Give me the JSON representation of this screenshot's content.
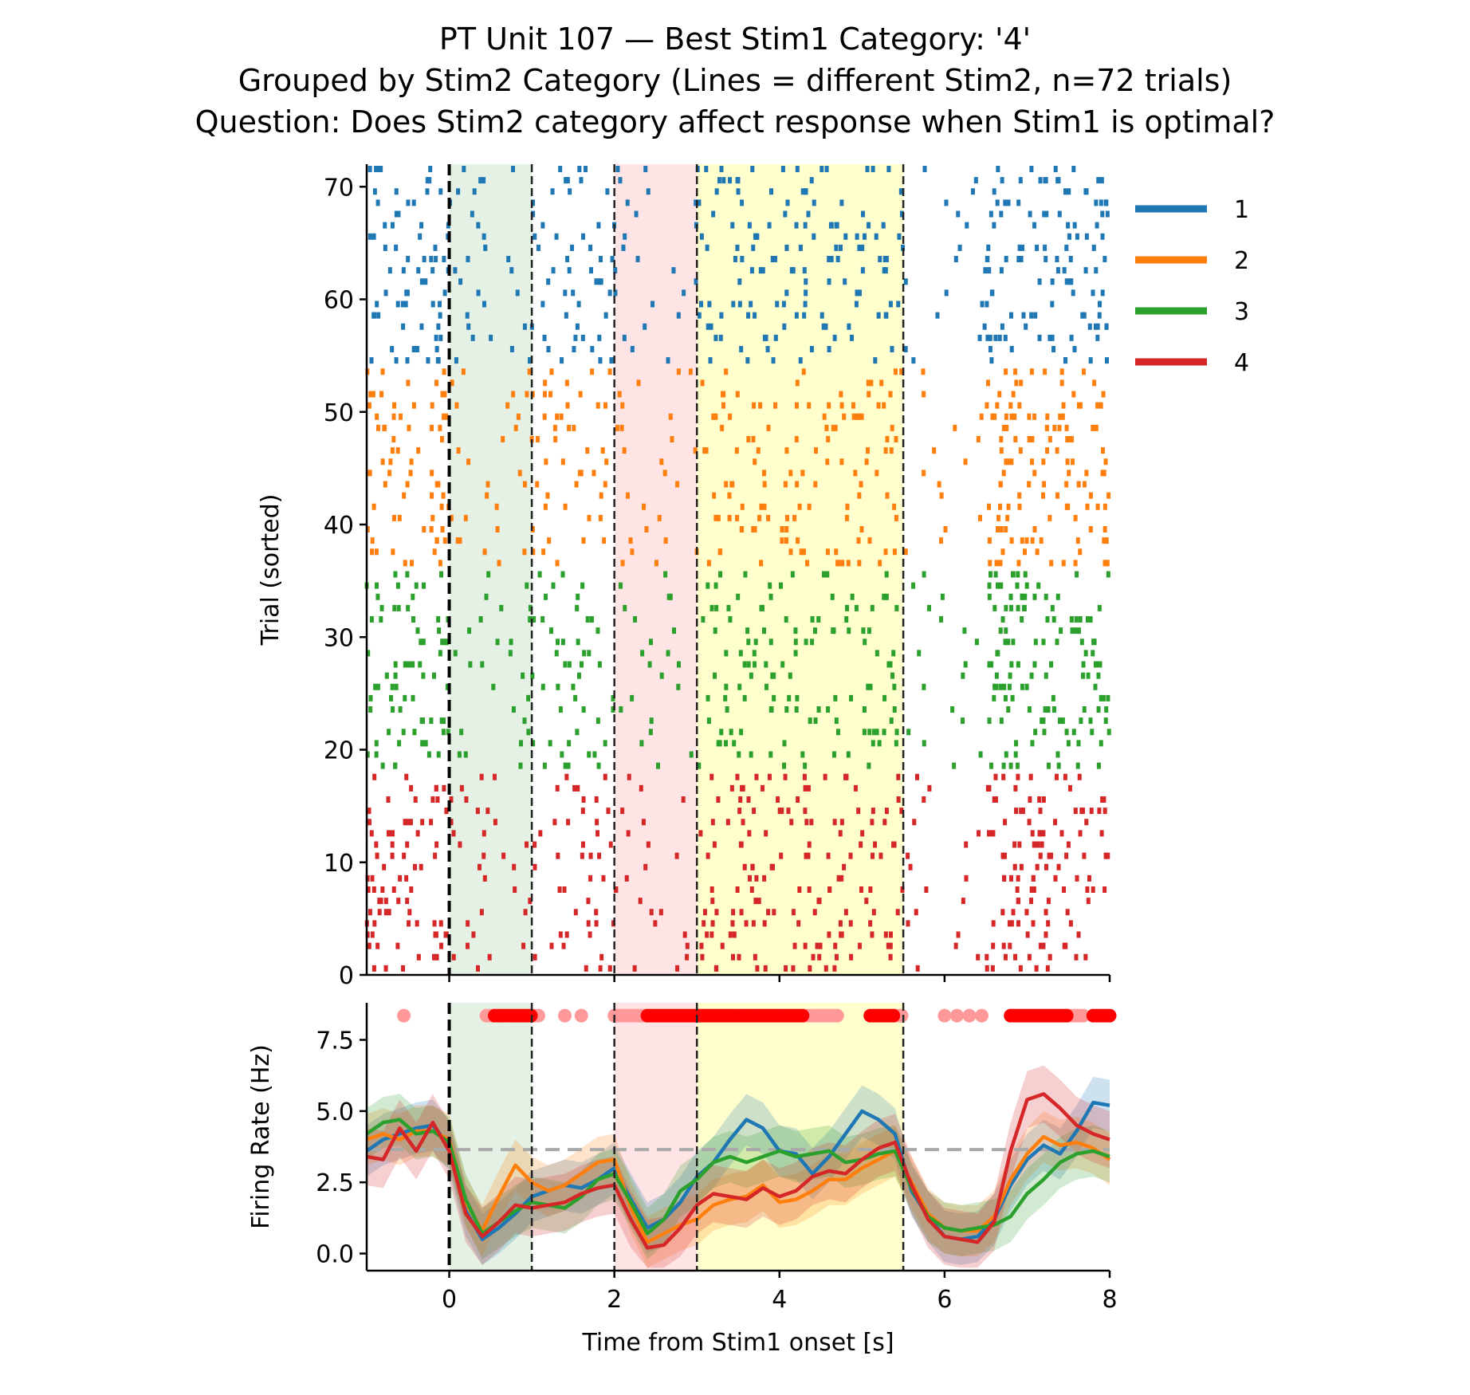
{
  "chart_data": [
    {
      "type": "scatter",
      "panel": "raster",
      "title": [
        "PT Unit 107 — Best Stim1 Category: '4'",
        "Grouped by Stim2 Category (Lines = different Stim2, n=72 trials)",
        "Question: Does Stim2 category affect response when Stim1 is optimal?"
      ],
      "ylabel": "Trial (sorted)",
      "xlim": [
        -1,
        8
      ],
      "ylim": [
        0,
        72
      ],
      "yticks": [
        0,
        10,
        20,
        30,
        40,
        50,
        60,
        70
      ],
      "trial_groups": [
        {
          "name": "1",
          "color": "#1f77b4",
          "trials": [
            54,
            72
          ]
        },
        {
          "name": "2",
          "color": "#ff7f0e",
          "trials": [
            36,
            54
          ]
        },
        {
          "name": "3",
          "color": "#2ca02c",
          "trials": [
            18,
            36
          ]
        },
        {
          "name": "4",
          "color": "#d62728",
          "trials": [
            0,
            18
          ]
        }
      ],
      "tick_density": [
        {
          "window": [
            -1.0,
            0.0
          ],
          "events_per_trial": 4
        },
        {
          "window": [
            0.0,
            1.0
          ],
          "events_per_trial": 1.6
        },
        {
          "window": [
            1.0,
            2.0
          ],
          "events_per_trial": 2.6
        },
        {
          "window": [
            2.0,
            3.0
          ],
          "events_per_trial": 1.2
        },
        {
          "window": [
            3.0,
            5.5
          ],
          "events_per_trial": 7.5
        },
        {
          "window": [
            5.5,
            6.5
          ],
          "events_per_trial": 0.8
        },
        {
          "window": [
            6.5,
            8.0
          ],
          "events_per_trial": 6.5
        }
      ]
    },
    {
      "type": "line",
      "panel": "psth",
      "xlabel": "Time from Stim1 onset [s]",
      "ylabel": "Firing Rate (Hz)",
      "xlim": [
        -1,
        8
      ],
      "ylim": [
        -0.6,
        8.8
      ],
      "xticks": [
        0,
        2,
        4,
        6,
        8
      ],
      "yticks": [
        0.0,
        2.5,
        5.0,
        7.5
      ],
      "ytick_labels": [
        "0.0",
        "2.5",
        "5.0",
        "7.5"
      ],
      "baseline": 3.65,
      "x": [
        -1.0,
        -0.8,
        -0.6,
        -0.4,
        -0.2,
        0.0,
        0.2,
        0.4,
        0.6,
        0.8,
        1.0,
        1.2,
        1.4,
        1.6,
        1.8,
        2.0,
        2.2,
        2.4,
        2.6,
        2.8,
        3.0,
        3.2,
        3.4,
        3.6,
        3.8,
        4.0,
        4.2,
        4.4,
        4.6,
        4.8,
        5.0,
        5.2,
        5.4,
        5.6,
        5.8,
        6.0,
        6.2,
        6.4,
        6.6,
        6.8,
        7.0,
        7.2,
        7.4,
        7.6,
        7.8,
        8.0
      ],
      "series": [
        {
          "name": "1",
          "color": "#1f77b4",
          "ci": 0.9,
          "values": [
            3.6,
            4.0,
            4.2,
            4.4,
            4.5,
            3.8,
            1.5,
            0.5,
            0.9,
            1.4,
            2.0,
            2.2,
            2.4,
            2.3,
            2.6,
            3.0,
            1.9,
            0.9,
            1.2,
            1.8,
            2.7,
            3.2,
            4.0,
            4.7,
            4.4,
            3.6,
            3.5,
            2.8,
            3.4,
            4.2,
            5.0,
            4.7,
            4.2,
            2.2,
            1.3,
            0.6,
            0.5,
            0.6,
            1.2,
            2.4,
            3.3,
            3.8,
            3.5,
            4.3,
            5.3,
            5.2
          ]
        },
        {
          "name": "2",
          "color": "#ff7f0e",
          "ci": 0.9,
          "values": [
            4.0,
            4.2,
            4.0,
            4.3,
            4.3,
            4.0,
            1.8,
            0.8,
            2.0,
            3.1,
            2.5,
            2.2,
            2.4,
            2.8,
            3.2,
            3.3,
            1.6,
            0.4,
            0.7,
            1.0,
            1.2,
            1.7,
            1.9,
            2.0,
            2.4,
            1.8,
            1.9,
            2.2,
            2.6,
            2.6,
            3.0,
            3.3,
            3.6,
            2.5,
            1.4,
            0.9,
            0.8,
            0.8,
            1.3,
            2.6,
            3.5,
            4.1,
            3.8,
            3.9,
            3.7,
            3.3
          ]
        },
        {
          "name": "3",
          "color": "#2ca02c",
          "ci": 0.9,
          "values": [
            4.2,
            4.6,
            4.7,
            4.2,
            4.3,
            3.9,
            1.9,
            0.7,
            1.1,
            1.5,
            1.8,
            1.7,
            1.6,
            2.0,
            2.6,
            2.8,
            1.8,
            0.7,
            1.2,
            2.2,
            2.6,
            3.2,
            3.4,
            3.2,
            3.4,
            3.6,
            3.4,
            3.5,
            3.6,
            3.2,
            3.3,
            3.5,
            3.6,
            2.3,
            1.3,
            0.9,
            0.8,
            0.9,
            1.0,
            1.3,
            2.1,
            2.6,
            3.2,
            3.5,
            3.6,
            3.4
          ]
        },
        {
          "name": "4",
          "color": "#d62728",
          "ci": 1.0,
          "values": [
            3.4,
            3.3,
            4.4,
            3.6,
            4.6,
            3.6,
            1.4,
            0.6,
            1.1,
            1.7,
            1.6,
            1.7,
            1.8,
            2.1,
            2.3,
            2.4,
            1.2,
            0.2,
            0.3,
            0.9,
            1.7,
            2.1,
            2.0,
            1.9,
            2.3,
            2.0,
            2.2,
            2.7,
            2.9,
            2.8,
            3.3,
            3.7,
            3.9,
            2.4,
            1.2,
            0.6,
            0.5,
            0.4,
            1.1,
            3.6,
            5.4,
            5.6,
            5.1,
            4.5,
            4.2,
            4.0
          ]
        }
      ],
      "significance_markers": {
        "y": 8.35,
        "bright_color": "#ff0000",
        "faint_color": "#ff9999",
        "bright_ranges": [
          [
            0.55,
            1.0
          ],
          [
            2.4,
            3.0
          ],
          [
            3.0,
            4.3
          ],
          [
            5.1,
            5.4
          ],
          [
            6.8,
            7.5
          ],
          [
            7.8,
            8.0
          ]
        ],
        "faint_ranges": [
          [
            0.45,
            0.55
          ],
          [
            1.0,
            1.1
          ],
          [
            2.0,
            2.4
          ],
          [
            4.3,
            4.7
          ],
          [
            5.4,
            5.5
          ],
          [
            6.8,
            7.7
          ]
        ],
        "faint_points": [
          -0.55,
          1.4,
          1.6,
          6.0,
          6.15,
          6.3,
          6.45
        ]
      }
    }
  ],
  "epochs": [
    {
      "start": 0.0,
      "end": 1.0,
      "color": "#c9e3c9"
    },
    {
      "start": 2.0,
      "end": 3.0,
      "color": "#ffc9cc"
    },
    {
      "start": 3.0,
      "end": 5.5,
      "color": "#ffff9e"
    }
  ],
  "epoch_edges": [
    1.0,
    2.0,
    3.0,
    5.5
  ],
  "onset": 0.0,
  "legend": {
    "placement": "upper right, outside",
    "entries": [
      {
        "label": "1",
        "color": "#1f77b4"
      },
      {
        "label": "2",
        "color": "#ff7f0e"
      },
      {
        "label": "3",
        "color": "#2ca02c"
      },
      {
        "label": "4",
        "color": "#d62728"
      }
    ]
  }
}
